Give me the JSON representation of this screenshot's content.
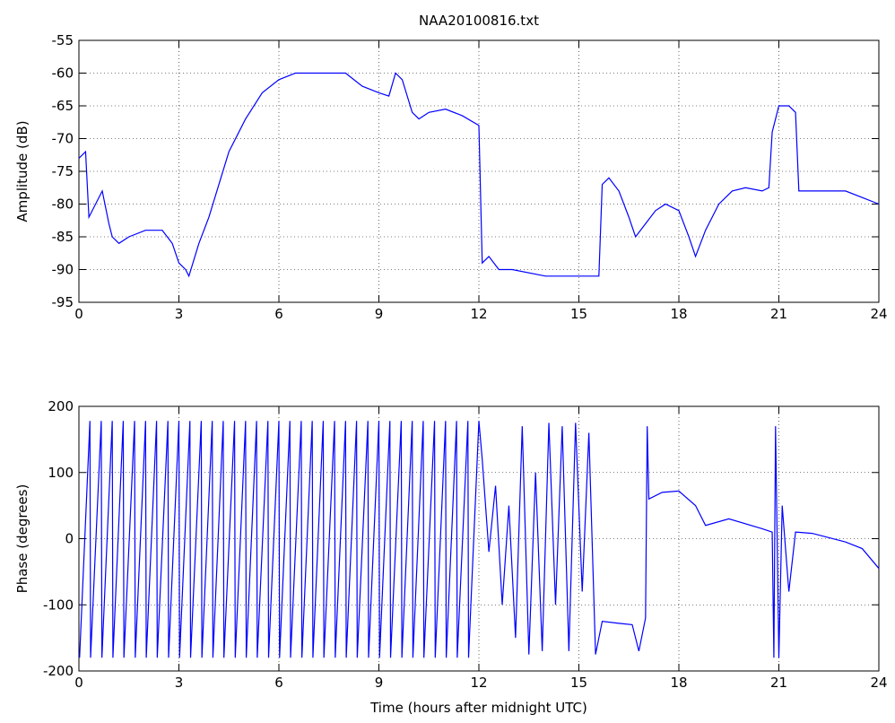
{
  "chart_data": [
    {
      "type": "line",
      "title": "NAA20100816.txt",
      "ylabel": "Amplitude (dB)",
      "xlim": [
        0,
        24
      ],
      "xticks": [
        0,
        3,
        6,
        9,
        12,
        15,
        18,
        21,
        24
      ],
      "ylim": [
        -95,
        -55
      ],
      "yticks": [
        -95,
        -90,
        -85,
        -80,
        -75,
        -70,
        -65,
        -60,
        -55
      ],
      "grid": true,
      "series": [
        {
          "color": "#0000ff",
          "x": [
            0,
            0.2,
            0.3,
            0.5,
            0.7,
            0.9,
            1.0,
            1.2,
            1.5,
            2.0,
            2.5,
            2.8,
            3.0,
            3.2,
            3.3,
            3.6,
            3.9,
            4.2,
            4.5,
            5,
            5.5,
            6,
            6.5,
            7,
            7.5,
            8,
            8.5,
            9,
            9.3,
            9.5,
            9.7,
            10,
            10.2,
            10.5,
            11,
            11.5,
            12,
            12.1,
            12.3,
            12.6,
            13,
            14,
            15,
            15.6,
            15.7,
            15.9,
            16.2,
            16.5,
            16.7,
            17,
            17.3,
            17.6,
            18,
            18.3,
            18.5,
            18.8,
            19.2,
            19.6,
            20,
            20.5,
            20.7,
            20.8,
            21,
            21.3,
            21.5,
            21.6,
            22,
            23,
            23.5,
            24
          ],
          "values": [
            -73,
            -72,
            -82,
            -80,
            -78,
            -83,
            -85,
            -86,
            -85,
            -84,
            -84,
            -86,
            -89,
            -90,
            -91,
            -86,
            -82,
            -77,
            -72,
            -67,
            -63,
            -61,
            -60,
            -60,
            -60,
            -60,
            -62,
            -63,
            -63.5,
            -60,
            -61,
            -66,
            -67,
            -66,
            -65.5,
            -66.5,
            -68,
            -89,
            -88,
            -90,
            -90,
            -91,
            -91,
            -91,
            -77,
            -76,
            -78,
            -82,
            -85,
            -83,
            -81,
            -80,
            -81,
            -85,
            -88,
            -84,
            -80,
            -78,
            -77.5,
            -78,
            -77.5,
            -69,
            -65,
            -65,
            -66,
            -78,
            -78,
            -78,
            -79,
            -80
          ]
        }
      ]
    },
    {
      "type": "line",
      "ylabel": "Phase (degrees)",
      "xlabel": "Time (hours after midnight UTC)",
      "xlim": [
        0,
        24
      ],
      "xticks": [
        0,
        3,
        6,
        9,
        12,
        15,
        18,
        21,
        24
      ],
      "ylim": [
        -200,
        200
      ],
      "yticks": [
        -200,
        -100,
        0,
        100,
        200
      ],
      "grid": true,
      "series": [
        {
          "color": "#0000ff",
          "x": [
            0.02,
            0.33,
            0.35,
            0.67,
            0.69,
            1,
            1.02,
            1.33,
            1.35,
            1.67,
            1.69,
            2,
            2.02,
            2.33,
            2.35,
            2.67,
            2.69,
            3,
            3.02,
            3.33,
            3.35,
            3.67,
            3.69,
            4,
            4.02,
            4.33,
            4.35,
            4.67,
            4.69,
            5,
            5.02,
            5.33,
            5.35,
            5.67,
            5.69,
            6,
            6.02,
            6.33,
            6.35,
            6.67,
            6.69,
            7,
            7.02,
            7.33,
            7.35,
            7.67,
            7.69,
            8,
            8.02,
            8.33,
            8.35,
            8.67,
            8.69,
            9,
            9.02,
            9.33,
            9.35,
            9.67,
            9.69,
            10,
            10.02,
            10.33,
            10.35,
            10.67,
            10.69,
            11,
            11.02,
            11.33,
            11.35,
            11.67,
            11.69,
            12,
            12.1,
            12.3,
            12.5,
            12.7,
            12.9,
            13.1,
            13.3,
            13.5,
            13.7,
            13.9,
            14.1,
            14.3,
            14.5,
            14.7,
            14.9,
            15.1,
            15.3,
            15.5,
            15.7,
            16.2,
            16.6,
            16.8,
            17.0,
            17.05,
            17.1,
            17.5,
            18.0,
            18.5,
            18.8,
            19.5,
            20.5,
            20.8,
            20.85,
            20.9,
            21.0,
            21.1,
            21.3,
            21.5,
            22,
            23,
            23.5,
            24
          ],
          "values": [
            -180,
            178,
            -180,
            178,
            -180,
            178,
            -180,
            178,
            -180,
            178,
            -180,
            178,
            -180,
            178,
            -180,
            178,
            -180,
            178,
            -180,
            178,
            -180,
            178,
            -180,
            178,
            -180,
            178,
            -180,
            178,
            -180,
            178,
            -180,
            178,
            -180,
            178,
            -180,
            178,
            -180,
            178,
            -180,
            178,
            -180,
            178,
            -180,
            178,
            -180,
            178,
            -180,
            178,
            -180,
            178,
            -180,
            178,
            -180,
            178,
            -180,
            178,
            -180,
            178,
            -180,
            178,
            -180,
            178,
            -180,
            178,
            -180,
            178,
            -180,
            178,
            -180,
            178,
            -180,
            178,
            120,
            -20,
            80,
            -100,
            50,
            -150,
            170,
            -175,
            100,
            -170,
            175,
            -100,
            170,
            -170,
            175,
            -80,
            160,
            -175,
            -125,
            -128,
            -130,
            -170,
            -120,
            170,
            60,
            70,
            72,
            50,
            20,
            30,
            15,
            10,
            -180,
            170,
            -180,
            50,
            -80,
            10,
            8,
            -5,
            -15,
            -45
          ]
        }
      ]
    }
  ]
}
